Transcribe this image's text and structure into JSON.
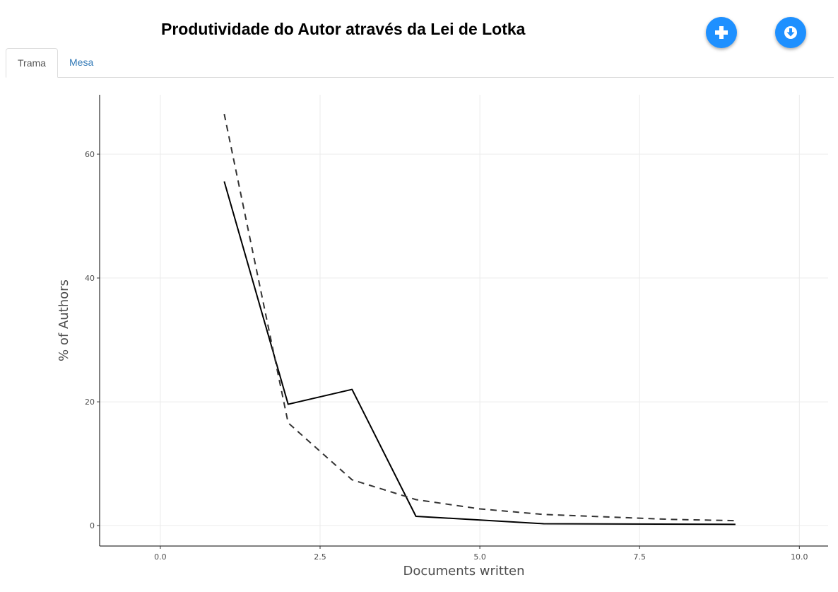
{
  "header": {
    "title": "Produtividade do Autor através da Lei de Lotka",
    "add_button_icon": "plus-icon",
    "download_button_icon": "download-circle-icon",
    "accent_color": "#1e90ff"
  },
  "tabs": [
    {
      "label": "Trama",
      "active": true
    },
    {
      "label": "Mesa",
      "active": false
    }
  ],
  "chart_data": {
    "type": "line",
    "title": "",
    "xlabel": "Documents written",
    "ylabel": "% of Authors",
    "xlim": [
      -0.95,
      10.45
    ],
    "ylim": [
      -3.3,
      69.6
    ],
    "x_ticks": [
      0,
      2.5,
      5,
      7.5,
      10
    ],
    "x_tick_labels": [
      "0.0",
      "2.5",
      "5.0",
      "7.5",
      "10.0"
    ],
    "y_ticks": [
      0,
      20,
      40,
      60
    ],
    "y_tick_labels": [
      "0",
      "20",
      "40",
      "60"
    ],
    "grid": true,
    "legend": "none",
    "series": [
      {
        "style": "solid",
        "color": "#000000",
        "x": [
          1,
          2,
          3,
          4,
          6,
          9
        ],
        "values": [
          55.6,
          19.6,
          22.0,
          1.5,
          0.3,
          0.2
        ]
      },
      {
        "style": "dashed",
        "color": "#333333",
        "x": [
          1,
          2,
          3,
          4,
          5,
          6,
          7,
          8,
          9
        ],
        "values": [
          66.5,
          16.6,
          7.4,
          4.2,
          2.7,
          1.8,
          1.4,
          1.0,
          0.8
        ]
      }
    ]
  }
}
